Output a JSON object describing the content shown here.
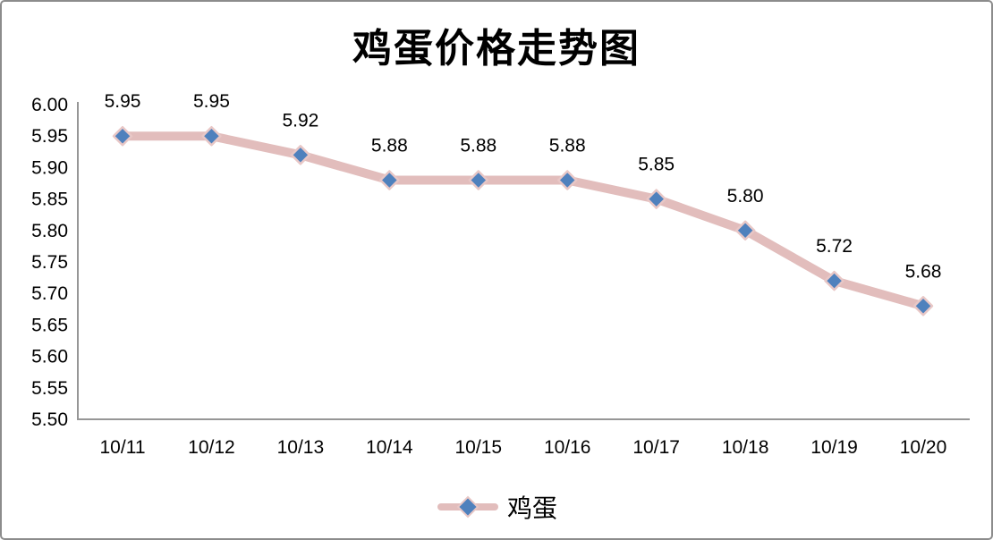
{
  "chart_data": {
    "type": "line",
    "title": "鸡蛋价格走势图",
    "categories": [
      "10/11",
      "10/12",
      "10/13",
      "10/14",
      "10/15",
      "10/16",
      "10/17",
      "10/18",
      "10/19",
      "10/20"
    ],
    "series": [
      {
        "name": "鸡蛋",
        "values": [
          5.95,
          5.95,
          5.92,
          5.88,
          5.88,
          5.88,
          5.85,
          5.8,
          5.72,
          5.68
        ]
      }
    ],
    "data_labels": [
      "5.95",
      "5.95",
      "5.92",
      "5.88",
      "5.88",
      "5.88",
      "5.85",
      "5.80",
      "5.72",
      "5.68"
    ],
    "y_ticks": [
      "6.00",
      "5.95",
      "5.90",
      "5.85",
      "5.80",
      "5.75",
      "5.70",
      "5.65",
      "5.60",
      "5.55",
      "5.50"
    ],
    "ylim": [
      5.5,
      6.0
    ],
    "xlabel": "",
    "ylabel": "",
    "grid": false,
    "legend_position": "bottom",
    "marker_shape": "diamond",
    "colors": {
      "line": "#e2bdbc",
      "marker_fill": "#4f81bd",
      "marker_outline": "#e8c7c6",
      "axis": "#969696",
      "text": "#000000",
      "frame_border": "#8c8c8c"
    }
  },
  "legend": {
    "series_label": "鸡蛋"
  }
}
